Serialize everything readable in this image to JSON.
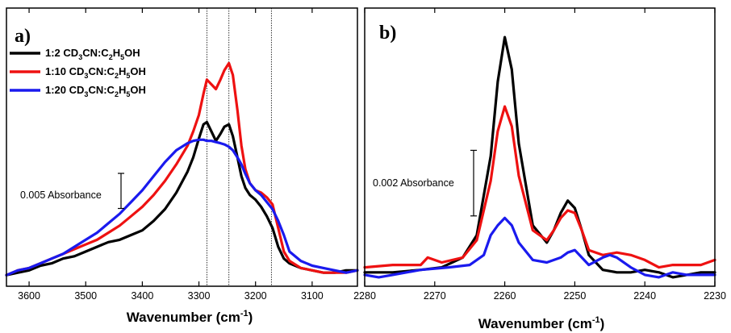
{
  "chart_data": [
    {
      "type": "line",
      "panel_label": "a)",
      "xlabel": "Wavenumber (cm",
      "xlabel_sup": "-1",
      "xlabel_close": ")",
      "xlim": [
        3640,
        3020
      ],
      "x_reversed": true,
      "xticks": [
        3600,
        3500,
        3400,
        3300,
        3200,
        3100
      ],
      "ylim": [
        0,
        1
      ],
      "y_tick_labels_shown": false,
      "vertical_reference_lines": [
        3286,
        3247,
        3172
      ],
      "scale_bar": {
        "label": "0.005 Absorbance",
        "range": [
          0.303,
          0.452
        ]
      },
      "legend_placement": "top-left",
      "series": [
        {
          "name": "1:2   CD3CN:C2H5OH",
          "name_parts": [
            "1:2   CD",
            "3",
            "CN:C",
            "2",
            "H",
            "5",
            "OH"
          ],
          "color": "#000000",
          "x": [
            3640,
            3620,
            3600,
            3580,
            3560,
            3540,
            3520,
            3500,
            3480,
            3460,
            3440,
            3420,
            3400,
            3380,
            3360,
            3340,
            3320,
            3310,
            3300,
            3292,
            3286,
            3278,
            3270,
            3262,
            3255,
            3247,
            3240,
            3232,
            3225,
            3218,
            3210,
            3200,
            3190,
            3180,
            3170,
            3160,
            3150,
            3140,
            3120,
            3100,
            3080,
            3060,
            3040,
            3020
          ],
          "y": [
            0.02,
            0.03,
            0.04,
            0.06,
            0.07,
            0.09,
            0.1,
            0.12,
            0.14,
            0.16,
            0.17,
            0.19,
            0.21,
            0.25,
            0.3,
            0.37,
            0.46,
            0.52,
            0.6,
            0.66,
            0.67,
            0.63,
            0.59,
            0.62,
            0.65,
            0.66,
            0.61,
            0.52,
            0.44,
            0.39,
            0.36,
            0.34,
            0.31,
            0.27,
            0.22,
            0.14,
            0.09,
            0.07,
            0.05,
            0.04,
            0.03,
            0.03,
            0.04,
            0.04
          ]
        },
        {
          "name": "1:10 CD3CN:C2H5OH",
          "name_parts": [
            "1:10 CD",
            "3",
            "CN:C",
            "2",
            "H",
            "5",
            "OH"
          ],
          "color": "#ee1111",
          "x": [
            3640,
            3620,
            3600,
            3580,
            3560,
            3540,
            3520,
            3500,
            3480,
            3460,
            3440,
            3420,
            3400,
            3380,
            3360,
            3340,
            3320,
            3310,
            3300,
            3292,
            3286,
            3278,
            3270,
            3262,
            3255,
            3247,
            3240,
            3232,
            3225,
            3218,
            3210,
            3200,
            3190,
            3180,
            3170,
            3160,
            3150,
            3140,
            3120,
            3100,
            3080,
            3060,
            3040,
            3020
          ],
          "y": [
            0.02,
            0.04,
            0.05,
            0.07,
            0.09,
            0.11,
            0.13,
            0.15,
            0.17,
            0.2,
            0.23,
            0.27,
            0.31,
            0.36,
            0.42,
            0.49,
            0.57,
            0.63,
            0.7,
            0.79,
            0.85,
            0.83,
            0.81,
            0.85,
            0.89,
            0.92,
            0.87,
            0.72,
            0.57,
            0.47,
            0.41,
            0.38,
            0.37,
            0.35,
            0.32,
            0.22,
            0.12,
            0.08,
            0.05,
            0.04,
            0.03,
            0.03,
            0.03,
            0.04
          ]
        },
        {
          "name": "1:20 CD3CN:C2H5OH",
          "name_parts": [
            "1:20 CD",
            "3",
            "CN:C",
            "2",
            "H",
            "5",
            "OH"
          ],
          "color": "#1a1aee",
          "x": [
            3640,
            3620,
            3600,
            3580,
            3560,
            3540,
            3520,
            3500,
            3480,
            3460,
            3440,
            3420,
            3400,
            3380,
            3360,
            3340,
            3320,
            3310,
            3300,
            3292,
            3286,
            3278,
            3270,
            3262,
            3255,
            3247,
            3240,
            3232,
            3225,
            3218,
            3210,
            3200,
            3190,
            3180,
            3170,
            3160,
            3150,
            3140,
            3120,
            3100,
            3080,
            3060,
            3040,
            3020
          ],
          "y": [
            0.02,
            0.04,
            0.05,
            0.07,
            0.09,
            0.11,
            0.14,
            0.17,
            0.2,
            0.24,
            0.28,
            0.33,
            0.38,
            0.44,
            0.5,
            0.55,
            0.58,
            0.59,
            0.595,
            0.595,
            0.59,
            0.59,
            0.585,
            0.58,
            0.575,
            0.565,
            0.55,
            0.52,
            0.49,
            0.45,
            0.41,
            0.38,
            0.36,
            0.33,
            0.3,
            0.25,
            0.19,
            0.12,
            0.08,
            0.06,
            0.05,
            0.04,
            0.03,
            0.04
          ]
        }
      ]
    },
    {
      "type": "line",
      "panel_label": "b)",
      "xlabel": "Wavenumber (cm",
      "xlabel_sup": "-1",
      "xlabel_close": ")",
      "xlim": [
        2280,
        2230
      ],
      "x_reversed": true,
      "xticks": [
        2280,
        2270,
        2260,
        2250,
        2240,
        2230
      ],
      "ylim": [
        0,
        1
      ],
      "y_tick_labels_shown": false,
      "scale_bar": {
        "label": "0.002 Absorbance",
        "range": [
          0.258,
          0.523
        ]
      },
      "series": [
        {
          "name": "1:2 CD3CN:C2H5OH",
          "color": "#000000",
          "x": [
            2280,
            2276,
            2272,
            2269,
            2266,
            2264,
            2262,
            2261,
            2260,
            2259,
            2258,
            2256,
            2254,
            2253,
            2252,
            2251,
            2250,
            2249,
            2248,
            2246,
            2244,
            2242,
            2240,
            2238,
            2236,
            2234,
            2232,
            2230
          ],
          "y": [
            0.03,
            0.03,
            0.04,
            0.05,
            0.09,
            0.18,
            0.5,
            0.8,
            0.98,
            0.85,
            0.55,
            0.22,
            0.15,
            0.2,
            0.27,
            0.32,
            0.29,
            0.2,
            0.1,
            0.04,
            0.03,
            0.03,
            0.04,
            0.03,
            0.01,
            0.02,
            0.03,
            0.03
          ]
        },
        {
          "name": "1:10 CD3CN:C2H5OH",
          "color": "#ee1111",
          "x": [
            2280,
            2276,
            2272,
            2271,
            2269,
            2266,
            2264,
            2262,
            2261,
            2260,
            2259,
            2258,
            2256,
            2254,
            2253,
            2252,
            2251,
            2250,
            2249,
            2248,
            2246,
            2244,
            2242,
            2240,
            2238,
            2236,
            2234,
            2232,
            2230
          ],
          "y": [
            0.05,
            0.06,
            0.06,
            0.09,
            0.07,
            0.09,
            0.16,
            0.4,
            0.6,
            0.7,
            0.62,
            0.42,
            0.2,
            0.16,
            0.2,
            0.25,
            0.28,
            0.27,
            0.2,
            0.12,
            0.1,
            0.11,
            0.1,
            0.08,
            0.05,
            0.06,
            0.06,
            0.06,
            0.08
          ]
        },
        {
          "name": "1:20 CD3CN:C2H5OH",
          "color": "#1a1aee",
          "x": [
            2280,
            2278,
            2276,
            2272,
            2268,
            2265,
            2263,
            2262,
            2261,
            2260,
            2259,
            2258,
            2256,
            2254,
            2252,
            2251,
            2250,
            2249,
            2248,
            2246,
            2245,
            2244,
            2242,
            2240,
            2238,
            2236,
            2234,
            2232,
            2230
          ],
          "y": [
            0.02,
            0.01,
            0.02,
            0.04,
            0.05,
            0.06,
            0.1,
            0.18,
            0.22,
            0.25,
            0.22,
            0.15,
            0.08,
            0.07,
            0.09,
            0.11,
            0.12,
            0.09,
            0.06,
            0.09,
            0.1,
            0.09,
            0.05,
            0.02,
            0.01,
            0.03,
            0.02,
            0.02,
            0.02
          ]
        }
      ]
    }
  ]
}
